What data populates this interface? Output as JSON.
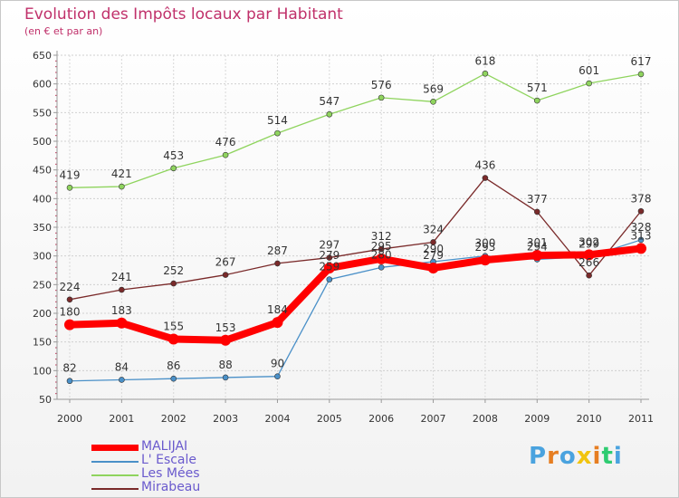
{
  "chart_data": {
    "type": "line",
    "title": "Evolution des Impôts locaux par Habitant",
    "subtitle": "(en € et par an)",
    "xlabel": "",
    "ylabel": "",
    "x": [
      "2000",
      "2001",
      "2002",
      "2003",
      "2004",
      "2005",
      "2006",
      "2007",
      "2008",
      "2009",
      "2010",
      "2011"
    ],
    "ylim": [
      50,
      650
    ],
    "yticks": [
      50,
      100,
      150,
      200,
      250,
      300,
      350,
      400,
      450,
      500,
      550,
      600,
      650
    ],
    "grid": true,
    "legend_position": "bottom-left",
    "series": [
      {
        "name": "MALIJAI",
        "color": "#ff0000",
        "values": [
          180,
          183,
          155,
          153,
          184,
          279,
          295,
          279,
          293,
          301,
          302,
          313
        ],
        "labels": [
          "180",
          "183",
          "155",
          "153",
          "184",
          "279",
          "295",
          "279",
          "293",
          "301",
          "302",
          "313"
        ]
      },
      {
        "name": "L' Escale",
        "color": "#4a90c8",
        "values": [
          82,
          84,
          86,
          88,
          90,
          259,
          280,
          290,
          300,
          294,
          299,
          328
        ],
        "labels": [
          "82",
          "84",
          "86",
          "88",
          "90",
          "259",
          "280",
          "290",
          "300",
          "294",
          "299",
          "328"
        ]
      },
      {
        "name": "Les Mées",
        "color": "#8fd45e",
        "values": [
          419,
          421,
          453,
          476,
          514,
          547,
          576,
          569,
          618,
          571,
          601,
          617
        ],
        "labels": [
          "419",
          "421",
          "453",
          "476",
          "514",
          "547",
          "576",
          "569",
          "618",
          "571",
          "601",
          "617"
        ]
      },
      {
        "name": "Mirabeau",
        "color": "#7a2a2a",
        "values": [
          224,
          241,
          252,
          267,
          287,
          297,
          312,
          324,
          436,
          377,
          266,
          378
        ],
        "labels": [
          "224",
          "241",
          "252",
          "267",
          "287",
          "297",
          "312",
          "324",
          "436",
          "377",
          "266",
          "378"
        ]
      }
    ]
  },
  "logo": {
    "text": "Proxiti",
    "letters": [
      "P",
      "r",
      "o",
      "x",
      "i",
      "t",
      "i"
    ],
    "colors": [
      "#4aa3df",
      "#e67e22",
      "#4aa3df",
      "#f1c40f",
      "#e67e22",
      "#2ecc71",
      "#4aa3df"
    ]
  }
}
